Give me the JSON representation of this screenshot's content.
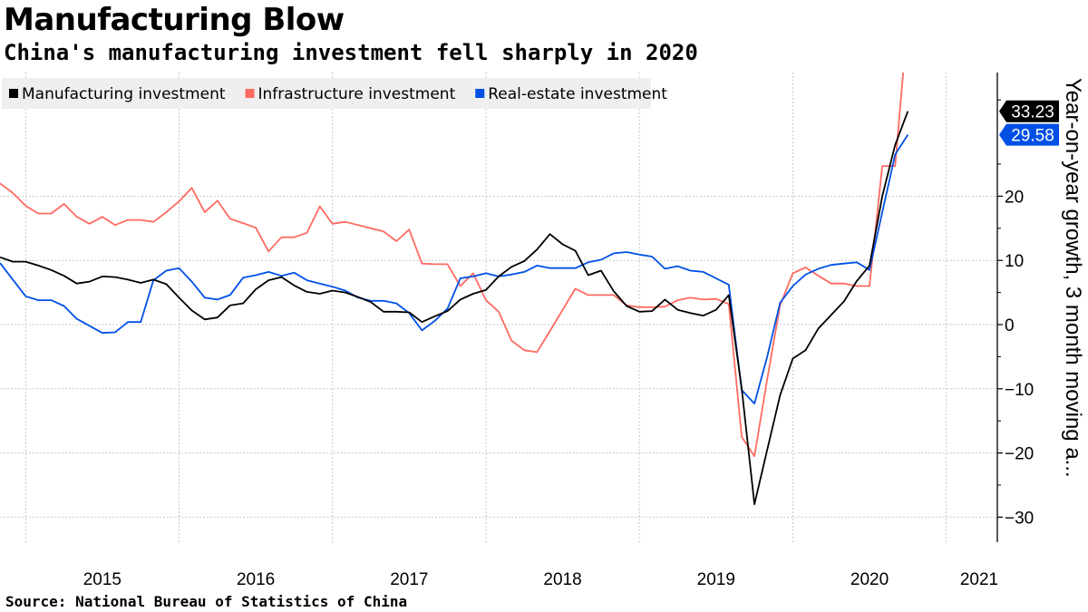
{
  "header": {
    "title": "Manufacturing Blow",
    "subtitle": "China's manufacturing investment fell sharply in 2020"
  },
  "footer": {
    "source": "Source: National Bureau of Statistics of China"
  },
  "chart_data": {
    "type": "line",
    "title": "Manufacturing Blow",
    "subtitle": "China's manufacturing investment fell sharply in 2020",
    "ylabel": "Year-on-year growth, 3 month moving a...",
    "xlabel": "",
    "ylim": [
      -33,
      39.5
    ],
    "yticks": [
      20,
      10,
      0,
      -10,
      -20,
      -30
    ],
    "ytick_labels": [
      "20",
      "10",
      "0",
      "−10",
      "−20",
      "−30"
    ],
    "x_start": 2014.833,
    "x_end": 2021.333,
    "year_ticks": [
      2015,
      2016,
      2017,
      2018,
      2019,
      2020,
      2021
    ],
    "year_labels": [
      "2015",
      "2016",
      "2017",
      "2018",
      "2019",
      "2020",
      "2021"
    ],
    "grid": true,
    "legend_position": "top-left",
    "series": [
      {
        "name": "Manufacturing investment",
        "color": "#000000",
        "last_label": "33.23",
        "points": [
          [
            2014.833,
            10.5
          ],
          [
            2014.917,
            9.8
          ],
          [
            2015.0,
            9.8
          ],
          [
            2015.083,
            9.2
          ],
          [
            2015.167,
            8.5
          ],
          [
            2015.25,
            7.6
          ],
          [
            2015.333,
            6.4
          ],
          [
            2015.417,
            6.7
          ],
          [
            2015.5,
            7.5
          ],
          [
            2015.583,
            7.4
          ],
          [
            2015.667,
            7.0
          ],
          [
            2015.75,
            6.5
          ],
          [
            2015.833,
            7.0
          ],
          [
            2015.917,
            6.3
          ],
          [
            2016.0,
            4.2
          ],
          [
            2016.083,
            2.2
          ],
          [
            2016.167,
            0.8
          ],
          [
            2016.25,
            1.1
          ],
          [
            2016.333,
            3.0
          ],
          [
            2016.417,
            3.3
          ],
          [
            2016.5,
            5.5
          ],
          [
            2016.583,
            6.9
          ],
          [
            2016.667,
            7.4
          ],
          [
            2016.75,
            6.1
          ],
          [
            2016.833,
            5.1
          ],
          [
            2016.917,
            4.8
          ],
          [
            2017.0,
            5.3
          ],
          [
            2017.083,
            5.0
          ],
          [
            2017.167,
            4.3
          ],
          [
            2017.25,
            3.5
          ],
          [
            2017.333,
            2.0
          ],
          [
            2017.417,
            2.0
          ],
          [
            2017.5,
            1.9
          ],
          [
            2017.583,
            0.4
          ],
          [
            2017.667,
            1.3
          ],
          [
            2017.75,
            2.1
          ],
          [
            2017.833,
            3.9
          ],
          [
            2017.917,
            4.8
          ],
          [
            2018.0,
            5.4
          ],
          [
            2018.083,
            7.5
          ],
          [
            2018.167,
            9.0
          ],
          [
            2018.25,
            9.9
          ],
          [
            2018.333,
            11.7
          ],
          [
            2018.417,
            14.1
          ],
          [
            2018.5,
            12.5
          ],
          [
            2018.583,
            11.5
          ],
          [
            2018.667,
            7.7
          ],
          [
            2018.75,
            8.4
          ],
          [
            2018.833,
            5.2
          ],
          [
            2018.917,
            2.9
          ],
          [
            2019.0,
            2.0
          ],
          [
            2019.083,
            2.1
          ],
          [
            2019.167,
            3.9
          ],
          [
            2019.25,
            2.3
          ],
          [
            2019.333,
            1.8
          ],
          [
            2019.417,
            1.4
          ],
          [
            2019.5,
            2.3
          ],
          [
            2019.583,
            4.6
          ],
          [
            2019.667,
            -10
          ],
          [
            2019.75,
            -28
          ],
          [
            2019.833,
            -19.5
          ],
          [
            2019.917,
            -11
          ],
          [
            2020.0,
            -5.3
          ],
          [
            2020.083,
            -4.0
          ],
          [
            2020.167,
            -0.6
          ],
          [
            2020.25,
            1.5
          ],
          [
            2020.333,
            3.6
          ],
          [
            2020.417,
            6.8
          ],
          [
            2020.5,
            9.2
          ],
          [
            2020.583,
            20
          ],
          [
            2020.667,
            28
          ],
          [
            2020.75,
            33.23
          ]
        ]
      },
      {
        "name": "Infrastructure investment",
        "color": "#ff6b61",
        "last_label": "",
        "points": [
          [
            2014.833,
            22.0
          ],
          [
            2014.917,
            20.5
          ],
          [
            2015.0,
            18.5
          ],
          [
            2015.083,
            17.3
          ],
          [
            2015.167,
            17.3
          ],
          [
            2015.25,
            18.8
          ],
          [
            2015.333,
            16.8
          ],
          [
            2015.417,
            15.7
          ],
          [
            2015.5,
            16.8
          ],
          [
            2015.583,
            15.5
          ],
          [
            2015.667,
            16.3
          ],
          [
            2015.75,
            16.3
          ],
          [
            2015.833,
            16.0
          ],
          [
            2015.917,
            17.5
          ],
          [
            2016.0,
            19.2
          ],
          [
            2016.083,
            21.3
          ],
          [
            2016.167,
            17.5
          ],
          [
            2016.25,
            19.3
          ],
          [
            2016.333,
            16.5
          ],
          [
            2016.417,
            15.8
          ],
          [
            2016.5,
            15.1
          ],
          [
            2016.583,
            11.4
          ],
          [
            2016.667,
            13.6
          ],
          [
            2016.75,
            13.6
          ],
          [
            2016.833,
            14.3
          ],
          [
            2016.917,
            18.4
          ],
          [
            2017.0,
            15.7
          ],
          [
            2017.083,
            16.0
          ],
          [
            2017.167,
            15.5
          ],
          [
            2017.25,
            15.0
          ],
          [
            2017.333,
            14.5
          ],
          [
            2017.417,
            13.0
          ],
          [
            2017.5,
            14.8
          ],
          [
            2017.583,
            9.5
          ],
          [
            2017.667,
            9.4
          ],
          [
            2017.75,
            9.4
          ],
          [
            2017.833,
            6.0
          ],
          [
            2017.917,
            8.0
          ],
          [
            2018.0,
            3.8
          ],
          [
            2018.083,
            2.0
          ],
          [
            2018.167,
            -2.5
          ],
          [
            2018.25,
            -4.0
          ],
          [
            2018.333,
            -4.3
          ],
          [
            2018.417,
            -1.0
          ],
          [
            2018.5,
            2.3
          ],
          [
            2018.583,
            5.6
          ],
          [
            2018.667,
            4.6
          ],
          [
            2018.75,
            4.6
          ],
          [
            2018.833,
            4.6
          ],
          [
            2018.917,
            3.0
          ],
          [
            2019.0,
            2.7
          ],
          [
            2019.083,
            2.7
          ],
          [
            2019.167,
            2.8
          ],
          [
            2019.25,
            3.8
          ],
          [
            2019.333,
            4.2
          ],
          [
            2019.417,
            3.9
          ],
          [
            2019.5,
            4.0
          ],
          [
            2019.583,
            3.2
          ],
          [
            2019.667,
            -17.5
          ],
          [
            2019.75,
            -20.5
          ],
          [
            2019.833,
            -8.5
          ],
          [
            2019.917,
            3.0
          ],
          [
            2020.0,
            8.0
          ],
          [
            2020.083,
            8.9
          ],
          [
            2020.167,
            7.6
          ],
          [
            2020.25,
            6.4
          ],
          [
            2020.333,
            6.4
          ],
          [
            2020.417,
            6.0
          ],
          [
            2020.5,
            6.0
          ],
          [
            2020.583,
            24.7
          ],
          [
            2020.667,
            24.7
          ],
          [
            2020.72,
            39.5
          ]
        ]
      },
      {
        "name": "Real-estate investment",
        "color": "#0050e6",
        "last_label": "29.58",
        "points": [
          [
            2014.833,
            9.6
          ],
          [
            2014.917,
            7.0
          ],
          [
            2015.0,
            4.4
          ],
          [
            2015.083,
            3.8
          ],
          [
            2015.167,
            3.8
          ],
          [
            2015.25,
            2.9
          ],
          [
            2015.333,
            0.9
          ],
          [
            2015.417,
            -0.2
          ],
          [
            2015.5,
            -1.3
          ],
          [
            2015.583,
            -1.2
          ],
          [
            2015.667,
            0.4
          ],
          [
            2015.75,
            0.4
          ],
          [
            2015.833,
            6.9
          ],
          [
            2015.917,
            8.4
          ],
          [
            2016.0,
            8.8
          ],
          [
            2016.083,
            6.7
          ],
          [
            2016.167,
            4.2
          ],
          [
            2016.25,
            3.9
          ],
          [
            2016.333,
            4.6
          ],
          [
            2016.417,
            7.3
          ],
          [
            2016.5,
            7.7
          ],
          [
            2016.583,
            8.2
          ],
          [
            2016.667,
            7.6
          ],
          [
            2016.75,
            8.1
          ],
          [
            2016.833,
            6.9
          ],
          [
            2016.917,
            6.4
          ],
          [
            2017.0,
            5.9
          ],
          [
            2017.083,
            5.3
          ],
          [
            2017.167,
            4.2
          ],
          [
            2017.25,
            3.7
          ],
          [
            2017.333,
            3.7
          ],
          [
            2017.417,
            3.3
          ],
          [
            2017.5,
            1.8
          ],
          [
            2017.583,
            -0.9
          ],
          [
            2017.667,
            0.6
          ],
          [
            2017.75,
            2.5
          ],
          [
            2017.833,
            7.2
          ],
          [
            2017.917,
            7.5
          ],
          [
            2018.0,
            8.0
          ],
          [
            2018.083,
            7.5
          ],
          [
            2018.167,
            7.8
          ],
          [
            2018.25,
            8.2
          ],
          [
            2018.333,
            9.2
          ],
          [
            2018.417,
            8.8
          ],
          [
            2018.5,
            8.8
          ],
          [
            2018.583,
            8.8
          ],
          [
            2018.667,
            9.7
          ],
          [
            2018.75,
            10.1
          ],
          [
            2018.833,
            11.1
          ],
          [
            2018.917,
            11.3
          ],
          [
            2019.0,
            10.9
          ],
          [
            2019.083,
            10.6
          ],
          [
            2019.167,
            8.7
          ],
          [
            2019.25,
            9.1
          ],
          [
            2019.333,
            8.4
          ],
          [
            2019.417,
            8.2
          ],
          [
            2019.5,
            7.2
          ],
          [
            2019.583,
            6.2
          ],
          [
            2019.667,
            -10.2
          ],
          [
            2019.75,
            -12.3
          ],
          [
            2019.833,
            -5.0
          ],
          [
            2019.917,
            3.4
          ],
          [
            2020.0,
            6.0
          ],
          [
            2020.083,
            7.8
          ],
          [
            2020.167,
            8.7
          ],
          [
            2020.25,
            9.3
          ],
          [
            2020.333,
            9.5
          ],
          [
            2020.417,
            9.7
          ],
          [
            2020.5,
            8.5
          ],
          [
            2020.583,
            17.5
          ],
          [
            2020.667,
            26.5
          ],
          [
            2020.75,
            29.58
          ]
        ]
      }
    ]
  }
}
